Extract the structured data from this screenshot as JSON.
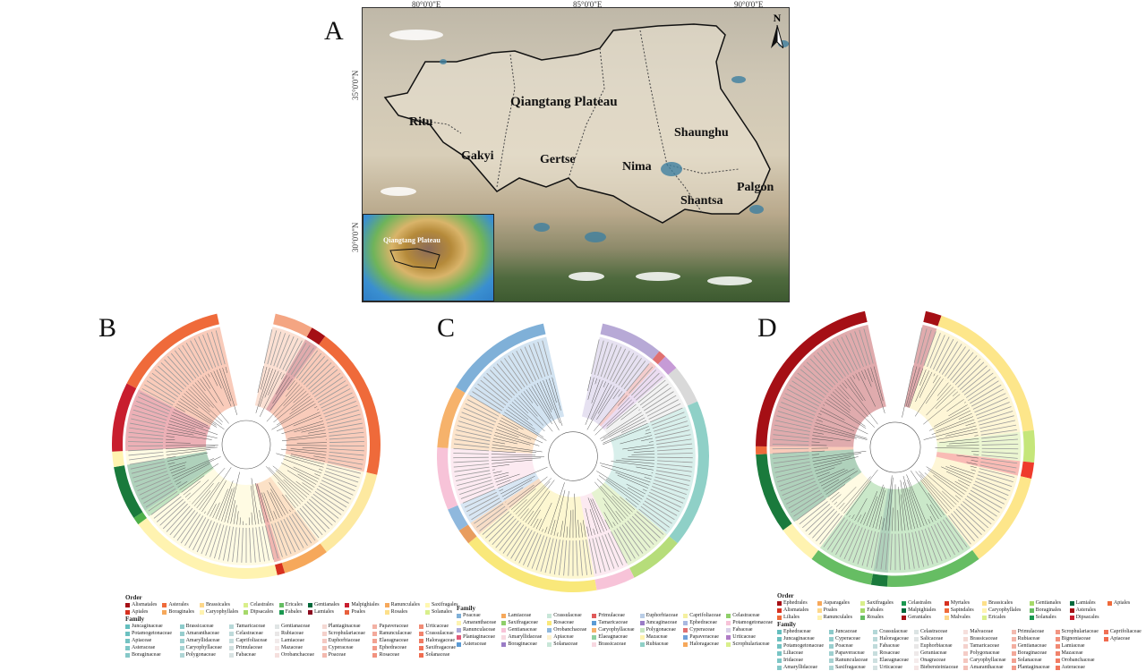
{
  "panels": {
    "a": "A",
    "b": "B",
    "c": "C",
    "d": "D"
  },
  "map": {
    "lon_labels": [
      "80°0'0\"E",
      "85°0'0\"E",
      "90°0'0\"E"
    ],
    "lat_labels": [
      "35°0'0\"N",
      "30°0'0\"N"
    ],
    "title": "Qiangtang Plateau",
    "regions": [
      "Ritu",
      "Gakyi",
      "Gertse",
      "Nima",
      "Shaunghu",
      "Shantsa",
      "Palgon"
    ],
    "north": "N",
    "inset_label": "Qiangtang Plateau"
  },
  "ring_colors": {
    "B": [
      [
        "#f4a582",
        0.05
      ],
      [
        "#a50f15",
        0.02
      ],
      [
        "#ef6a3a",
        0.2
      ],
      [
        "#fde9a0",
        0.12
      ],
      [
        "#f6a85b",
        0.06
      ],
      [
        "#d7301f",
        0.01
      ],
      [
        "#fff3b0",
        0.2
      ],
      [
        "#4daf4a",
        0.01
      ],
      [
        "#1a7a3c",
        0.07
      ],
      [
        "#fff3b0",
        0.02
      ],
      [
        "#c81e2e",
        0.09
      ],
      [
        "#ef6a3a",
        0.15
      ]
    ],
    "C": [
      [
        "#b7a9d6",
        0.08
      ],
      [
        "#e07070",
        0.01
      ],
      [
        "#c69bd6",
        0.02
      ],
      [
        "#d9d9d9",
        0.05
      ],
      [
        "#8fd0c7",
        0.19
      ],
      [
        "#b6dd7a",
        0.07
      ],
      [
        "#f7c3d8",
        0.05
      ],
      [
        "#f9e87a",
        0.18
      ],
      [
        "#e89d5f",
        0.02
      ],
      [
        "#8fb8dd",
        0.03
      ],
      [
        "#f7c3d8",
        0.08
      ],
      [
        "#f6b26b",
        0.08
      ],
      [
        "#7fb0d8",
        0.14
      ]
    ],
    "D": [
      [
        "#a50f15",
        0.02
      ],
      [
        "#fde68a",
        0.19
      ],
      [
        "#c5e67a",
        0.04
      ],
      [
        "#ef3b2c",
        0.02
      ],
      [
        "#fde68a",
        0.12
      ],
      [
        "#66bd63",
        0.12
      ],
      [
        "#1a7a3c",
        0.02
      ],
      [
        "#66bd63",
        0.08
      ],
      [
        "#fff3b0",
        0.05
      ],
      [
        "#1a7a3c",
        0.1
      ],
      [
        "#ef6a3a",
        0.01
      ],
      [
        "#a50f15",
        0.23
      ]
    ]
  },
  "legend_b": {
    "order_title": "Order",
    "order": [
      [
        "Alismatales",
        "#a50f15"
      ],
      [
        "Apiales",
        "#d7301f"
      ],
      [
        "Asterales",
        "#ef6a3a"
      ],
      [
        "Boraginales",
        "#f6a85b"
      ],
      [
        "Brassicales",
        "#fdd78a"
      ],
      [
        "Caryophyllales",
        "#fff3b0"
      ],
      [
        "Celastrales",
        "#d9ef8b"
      ],
      [
        "Dipsacales",
        "#a6d96a"
      ],
      [
        "Ericales",
        "#66bd63"
      ],
      [
        "Fabales",
        "#1a9850"
      ],
      [
        "Gentianales",
        "#00683a"
      ],
      [
        "Lamiales",
        "#8b0a1e"
      ],
      [
        "Malpighiales",
        "#c81e2e"
      ],
      [
        "Poales",
        "#e8603c"
      ],
      [
        "Ranunculales",
        "#f6a85b"
      ],
      [
        "Rosales",
        "#fde08a"
      ],
      [
        "Saxifragales",
        "#fff7b0"
      ],
      [
        "Solanales",
        "#d9ef8b"
      ]
    ],
    "family_title": "Family",
    "family": [
      "Juncaginaceae",
      "Potamogetonaceae",
      "Apiaceae",
      "Asteraceae",
      "Boraginaceae",
      "Brassicaceae",
      "Amaranthaceae",
      "Amaryllidaceae",
      "Caryophyllaceae",
      "Polygonaceae",
      "Tamaricaceae",
      "Celastraceae",
      "Caprifoliaceae",
      "Primulaceae",
      "Fabaceae",
      "Gentianaceae",
      "Rubiaceae",
      "Lamiaceae",
      "Mazaceae",
      "Orobanchaceae",
      "Plantaginaceae",
      "Scrophulariaceae",
      "Euphorbiaceae",
      "Cyperaceae",
      "Poaceae",
      "Papaveraceae",
      "Ranunculaceae",
      "Elaeagnaceae",
      "Ephedraceae",
      "Rosaceae",
      "Urticaceae",
      "Crassulaceae",
      "Haloragaceae",
      "Saxifragaceae",
      "Solanaceae"
    ]
  },
  "legend_c": {
    "family_title": "Family",
    "family": [
      [
        "Poaceae",
        "#7fb0d8"
      ],
      [
        "Lamiaceae",
        "#f6a85b"
      ],
      [
        "Crassulaceae",
        "#c8e6d8"
      ],
      [
        "Primulaceae",
        "#e05a5a"
      ],
      [
        "Euphorbiaceae",
        "#b9cde6"
      ],
      [
        "Caprifoliaceae",
        "#f5f0a0"
      ],
      [
        "Celastraceae",
        "#8fcf6a"
      ],
      [
        "Amaranthaceae",
        "#fdf3b0"
      ],
      [
        "Saxifragaceae",
        "#8fcf6a"
      ],
      [
        "Rosaceae",
        "#f9e87a"
      ],
      [
        "Tamaricaceae",
        "#5b9bd5"
      ],
      [
        "Juncaginaceae",
        "#9a7cc6"
      ],
      [
        "Ephedraceae",
        "#a9b8e0"
      ],
      [
        "Potamogetonaceae",
        "#f7c3d8"
      ],
      [
        "Ranunculaceae",
        "#a9a9d9"
      ],
      [
        "Gentianaceae",
        "#f7c3d8"
      ],
      [
        "Orobanchaceae",
        "#8fb8dd"
      ],
      [
        "Caryophyllaceae",
        "#f6b26b"
      ],
      [
        "Polygonaceae",
        "#c8e6c0"
      ],
      [
        "Cyperaceae",
        "#e07070"
      ],
      [
        "Fabaceae",
        "#d8d0e8"
      ],
      [
        "Plantaginaceae",
        "#e05a7a"
      ],
      [
        "Amaryllidaceae",
        "#f7d8e0"
      ],
      [
        "Apiaceae",
        "#fdf3d0"
      ],
      [
        "Elaeagnaceae",
        "#8fd0a0"
      ],
      [
        "Mazaceae",
        "#fff3b0"
      ],
      [
        "Papaveraceae",
        "#6fa0d8"
      ],
      [
        "Urticaceae",
        "#b07cc6"
      ],
      [
        "Asteraceae",
        "#5b9bd5"
      ],
      [
        "Boraginaceae",
        "#9a7cc6"
      ],
      [
        "Solanaceae",
        "#c8e6d8"
      ],
      [
        "Brassicaceae",
        "#f7d8e0"
      ],
      [
        "Rubiaceae",
        "#8fd0c7"
      ],
      [
        "Haloragaceae",
        "#f6a85b"
      ],
      [
        "Scrophulariaceae",
        "#d9ef8b"
      ]
    ]
  },
  "legend_d": {
    "order_title": "Order",
    "order": [
      [
        "Ephedrales",
        "#a50f15"
      ],
      [
        "Alismatales",
        "#d7301f"
      ],
      [
        "Liliales",
        "#ef6a3a"
      ],
      [
        "Asparagales",
        "#f6a85b"
      ],
      [
        "Poales",
        "#fdd78a"
      ],
      [
        "Ranunculales",
        "#fff3b0"
      ],
      [
        "Saxifragales",
        "#d9ef8b"
      ],
      [
        "Fabales",
        "#a6d96a"
      ],
      [
        "Rosales",
        "#66bd63"
      ],
      [
        "Celastrales",
        "#1a9850"
      ],
      [
        "Malpighiales",
        "#00683a"
      ],
      [
        "Geraniales",
        "#a50f15"
      ],
      [
        "Myrtales",
        "#d7301f"
      ],
      [
        "Sapindales",
        "#ef6a3a"
      ],
      [
        "Malvales",
        "#fdd78a"
      ],
      [
        "Brassicales",
        "#fde08a"
      ],
      [
        "Caryophyllales",
        "#fff3b0"
      ],
      [
        "Ericales",
        "#d9ef8b"
      ],
      [
        "Gentianales",
        "#a6d96a"
      ],
      [
        "Boraginales",
        "#66bd63"
      ],
      [
        "Solanales",
        "#1a9850"
      ],
      [
        "Lamiales",
        "#00683a"
      ],
      [
        "Asterales",
        "#a50f15"
      ],
      [
        "Dipsacales",
        "#c81e2e"
      ],
      [
        "Apiales",
        "#ef6a3a"
      ]
    ],
    "family_title": "Family",
    "family": [
      "Ephedraceae",
      "Juncaginaceae",
      "Potamogetonaceae",
      "Liliaceae",
      "Iridaceae",
      "Amaryllidaceae",
      "Juncaceae",
      "Cyperaceae",
      "Poaceae",
      "Papaveraceae",
      "Ranunculaceae",
      "Saxifragaceae",
      "Crassulaceae",
      "Haloragaceae",
      "Fabaceae",
      "Rosaceae",
      "Elaeagnaceae",
      "Urticaceae",
      "Celastraceae",
      "Salicaceae",
      "Euphorbiaceae",
      "Geraniaceae",
      "Onagraceae",
      "Biebersteiniaceae",
      "Malvaceae",
      "Brassicaceae",
      "Tamaricaceae",
      "Polygonaceae",
      "Caryophyllaceae",
      "Amaranthaceae",
      "Primulaceae",
      "Rubiaceae",
      "Gentianaceae",
      "Boraginaceae",
      "Solanaceae",
      "Plantaginaceae",
      "Scrophulariaceae",
      "Bignoniaceae",
      "Lamiaceae",
      "Mazaceae",
      "Orobanchaceae",
      "Asteraceae",
      "Caprifoliaceae",
      "Apiaceae"
    ]
  }
}
